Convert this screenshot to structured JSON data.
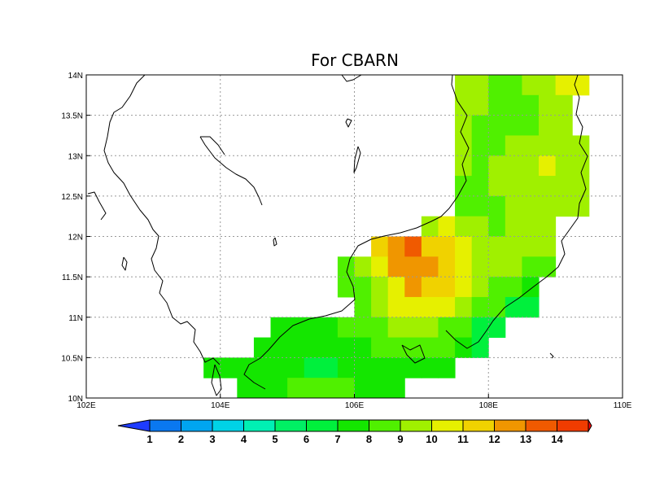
{
  "title": "For CBARN",
  "x_axis": {
    "ticks": [
      102,
      104,
      106,
      108,
      110
    ],
    "labels": [
      "102E",
      "104E",
      "106E",
      "108E",
      "110E"
    ],
    "range": [
      102,
      110
    ]
  },
  "y_axis": {
    "ticks": [
      10,
      10.5,
      11,
      11.5,
      12,
      12.5,
      13,
      13.5,
      14
    ],
    "labels": [
      "10N",
      "10.5N",
      "11N",
      "11.5N",
      "12N",
      "12.5N",
      "13N",
      "13.5N",
      "14N"
    ],
    "range": [
      10,
      14
    ]
  },
  "grid": true,
  "colorbar": {
    "labels": [
      "1",
      "2",
      "3",
      "4",
      "5",
      "6",
      "7",
      "8",
      "9",
      "10",
      "11",
      "12",
      "13",
      "14"
    ],
    "colors": [
      "#1e3cff",
      "#0a78f0",
      "#00a5f0",
      "#00d2e6",
      "#00f0b4",
      "#00f064",
      "#00f03c",
      "#14e600",
      "#50f000",
      "#a0f000",
      "#e6f000",
      "#f0d200",
      "#f09600",
      "#f05a00",
      "#f03c00",
      "#ff0000"
    ]
  },
  "chart_data": {
    "type": "heatmap",
    "title": "For CBARN",
    "cell_size_deg": 0.25,
    "x_range": [
      102,
      110
    ],
    "y_range": [
      10,
      14
    ],
    "rows": [
      {
        "lat": 13.875,
        "cells": [
          [
            107.625,
            9
          ],
          [
            107.875,
            9
          ],
          [
            108.125,
            8
          ],
          [
            108.375,
            8
          ],
          [
            108.625,
            9
          ],
          [
            108.875,
            9
          ],
          [
            109.125,
            10
          ],
          [
            109.375,
            10
          ]
        ]
      },
      {
        "lat": 13.625,
        "cells": [
          [
            107.625,
            9
          ],
          [
            107.875,
            9
          ],
          [
            108.125,
            8
          ],
          [
            108.375,
            8
          ],
          [
            108.625,
            8
          ],
          [
            108.875,
            9
          ],
          [
            109.125,
            9
          ]
        ]
      },
      {
        "lat": 13.375,
        "cells": [
          [
            107.625,
            9
          ],
          [
            107.875,
            8
          ],
          [
            108.125,
            8
          ],
          [
            108.375,
            8
          ],
          [
            108.625,
            8
          ],
          [
            108.875,
            9
          ],
          [
            109.125,
            9
          ]
        ]
      },
      {
        "lat": 13.125,
        "cells": [
          [
            107.625,
            9
          ],
          [
            107.875,
            8
          ],
          [
            108.125,
            8
          ],
          [
            108.375,
            9
          ],
          [
            108.625,
            9
          ],
          [
            108.875,
            9
          ],
          [
            109.125,
            9
          ],
          [
            109.375,
            9
          ]
        ]
      },
      {
        "lat": 12.875,
        "cells": [
          [
            107.625,
            9
          ],
          [
            107.875,
            8
          ],
          [
            108.125,
            9
          ],
          [
            108.375,
            9
          ],
          [
            108.625,
            9
          ],
          [
            108.875,
            10
          ],
          [
            109.125,
            9
          ],
          [
            109.375,
            9
          ]
        ]
      },
      {
        "lat": 12.625,
        "cells": [
          [
            107.625,
            8
          ],
          [
            107.875,
            8
          ],
          [
            108.125,
            9
          ],
          [
            108.375,
            9
          ],
          [
            108.625,
            9
          ],
          [
            108.875,
            9
          ],
          [
            109.125,
            9
          ],
          [
            109.375,
            9
          ]
        ]
      },
      {
        "lat": 12.375,
        "cells": [
          [
            107.625,
            8
          ],
          [
            107.875,
            8
          ],
          [
            108.125,
            8
          ],
          [
            108.375,
            9
          ],
          [
            108.625,
            9
          ],
          [
            108.875,
            9
          ],
          [
            109.125,
            9
          ],
          [
            109.375,
            9
          ]
        ]
      },
      {
        "lat": 12.125,
        "cells": [
          [
            107.125,
            9
          ],
          [
            107.375,
            10
          ],
          [
            107.625,
            9
          ],
          [
            107.875,
            9
          ],
          [
            108.125,
            8
          ],
          [
            108.375,
            9
          ],
          [
            108.625,
            9
          ],
          [
            108.875,
            9
          ]
        ]
      },
      {
        "lat": 11.875,
        "cells": [
          [
            106.375,
            11
          ],
          [
            106.625,
            12
          ],
          [
            106.875,
            13
          ],
          [
            107.125,
            11
          ],
          [
            107.375,
            11
          ],
          [
            107.625,
            10
          ],
          [
            107.875,
            9
          ],
          [
            108.125,
            9
          ],
          [
            108.375,
            9
          ],
          [
            108.625,
            9
          ],
          [
            108.875,
            9
          ]
        ]
      },
      {
        "lat": 11.625,
        "cells": [
          [
            105.875,
            8
          ],
          [
            106.125,
            9
          ],
          [
            106.375,
            10
          ],
          [
            106.625,
            12
          ],
          [
            106.875,
            12
          ],
          [
            107.125,
            12
          ],
          [
            107.375,
            11
          ],
          [
            107.625,
            10
          ],
          [
            107.875,
            9
          ],
          [
            108.125,
            9
          ],
          [
            108.375,
            9
          ],
          [
            108.625,
            8
          ],
          [
            108.875,
            8
          ]
        ]
      },
      {
        "lat": 11.375,
        "cells": [
          [
            105.875,
            8
          ],
          [
            106.125,
            8
          ],
          [
            106.375,
            9
          ],
          [
            106.625,
            10
          ],
          [
            106.875,
            12
          ],
          [
            107.125,
            11
          ],
          [
            107.375,
            11
          ],
          [
            107.625,
            10
          ],
          [
            107.875,
            9
          ],
          [
            108.125,
            8
          ],
          [
            108.375,
            8
          ],
          [
            108.625,
            7
          ]
        ]
      },
      {
        "lat": 11.125,
        "cells": [
          [
            106.125,
            8
          ],
          [
            106.375,
            9
          ],
          [
            106.625,
            10
          ],
          [
            106.875,
            10
          ],
          [
            107.125,
            10
          ],
          [
            107.375,
            10
          ],
          [
            107.625,
            9
          ],
          [
            107.875,
            8
          ],
          [
            108.125,
            8
          ],
          [
            108.375,
            6
          ],
          [
            108.625,
            6
          ]
        ]
      },
      {
        "lat": 10.875,
        "cells": [
          [
            104.875,
            7
          ],
          [
            105.125,
            7
          ],
          [
            105.375,
            7
          ],
          [
            105.625,
            7
          ],
          [
            105.875,
            8
          ],
          [
            106.125,
            8
          ],
          [
            106.375,
            8
          ],
          [
            106.625,
            9
          ],
          [
            106.875,
            9
          ],
          [
            107.125,
            9
          ],
          [
            107.375,
            8
          ],
          [
            107.625,
            8
          ],
          [
            107.875,
            6
          ],
          [
            108.125,
            6
          ]
        ]
      },
      {
        "lat": 10.625,
        "cells": [
          [
            104.625,
            7
          ],
          [
            104.875,
            7
          ],
          [
            105.125,
            7
          ],
          [
            105.375,
            7
          ],
          [
            105.625,
            7
          ],
          [
            105.875,
            7
          ],
          [
            106.125,
            7
          ],
          [
            106.375,
            8
          ],
          [
            106.625,
            8
          ],
          [
            106.875,
            8
          ],
          [
            107.125,
            8
          ],
          [
            107.375,
            8
          ],
          [
            107.625,
            7
          ],
          [
            107.875,
            6
          ]
        ]
      },
      {
        "lat": 10.375,
        "cells": [
          [
            103.875,
            7
          ],
          [
            104.125,
            7
          ],
          [
            104.375,
            7
          ],
          [
            104.625,
            7
          ],
          [
            104.875,
            7
          ],
          [
            105.125,
            7
          ],
          [
            105.375,
            6
          ],
          [
            105.625,
            6
          ],
          [
            105.875,
            7
          ],
          [
            106.125,
            7
          ],
          [
            106.375,
            7
          ],
          [
            106.625,
            7
          ],
          [
            106.875,
            7
          ],
          [
            107.125,
            7
          ],
          [
            107.375,
            7
          ]
        ]
      },
      {
        "lat": 10.125,
        "cells": [
          [
            104.375,
            7
          ],
          [
            104.625,
            7
          ],
          [
            104.875,
            7
          ],
          [
            105.125,
            8
          ],
          [
            105.375,
            8
          ],
          [
            105.625,
            8
          ],
          [
            105.875,
            8
          ],
          [
            106.125,
            7
          ],
          [
            106.375,
            7
          ],
          [
            106.625,
            7
          ]
        ]
      }
    ]
  }
}
